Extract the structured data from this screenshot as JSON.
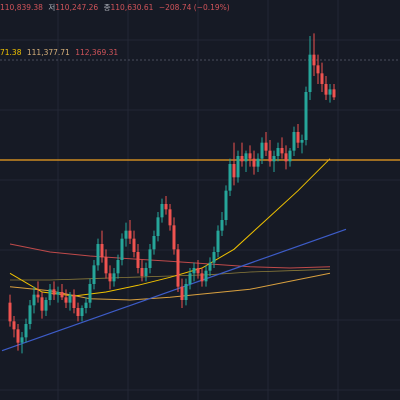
{
  "ohlc_legend": {
    "open": "110,839.38",
    "low_label": "저",
    "low": "110,247.26",
    "close_label": "종",
    "close": "110,630.61",
    "change": "−208.74 (−0.19%)"
  },
  "ma_legend": {
    "ma_a": "71.38",
    "ma_b": "111,377.71",
    "ma_c": "112,369.31"
  },
  "colors": {
    "background": "#161a25",
    "grid": "#232735",
    "up": "#26a69a",
    "down": "#ef5350",
    "ma_short": "#f0c200",
    "ma_mid": "#d9a03f",
    "ma_long": "#c04a4a",
    "support_level": "#f0a020",
    "trendline": "#3d5cc8",
    "ma_faint": "#8a7a3a",
    "price_line": "#5d6270"
  },
  "chart_data": {
    "type": "candlestick",
    "y_range": [
      104150,
      119150
    ],
    "candles": [
      [
        107800,
        108100,
        106900,
        107100
      ],
      [
        107100,
        107300,
        106500,
        106800
      ],
      [
        106800,
        107000,
        106000,
        106300
      ],
      [
        106300,
        106700,
        105900,
        106500
      ],
      [
        106500,
        107200,
        106300,
        107000
      ],
      [
        107000,
        107900,
        106800,
        107700
      ],
      [
        107700,
        108400,
        107400,
        108100
      ],
      [
        108100,
        108600,
        107800,
        108000
      ],
      [
        108000,
        108200,
        107200,
        107500
      ],
      [
        107500,
        108000,
        107300,
        107900
      ],
      [
        107900,
        108500,
        107700,
        108300
      ],
      [
        108300,
        108600,
        107900,
        108100
      ],
      [
        108100,
        108400,
        107800,
        108200
      ],
      [
        108200,
        108500,
        107900,
        108000
      ],
      [
        108000,
        108300,
        107600,
        107800
      ],
      [
        107800,
        108200,
        107500,
        108100
      ],
      [
        108100,
        108300,
        107400,
        107600
      ],
      [
        107600,
        107800,
        107100,
        107300
      ],
      [
        107300,
        107700,
        107100,
        107600
      ],
      [
        107600,
        108000,
        107400,
        107800
      ],
      [
        107800,
        108700,
        107600,
        108500
      ],
      [
        108500,
        109400,
        108300,
        109200
      ],
      [
        109200,
        110200,
        109000,
        110000
      ],
      [
        110000,
        110500,
        109300,
        109500
      ],
      [
        109500,
        109800,
        108700,
        108900
      ],
      [
        108900,
        109200,
        108300,
        108600
      ],
      [
        108600,
        109100,
        108400,
        108900
      ],
      [
        108900,
        109600,
        108700,
        109400
      ],
      [
        109400,
        110400,
        109200,
        110200
      ],
      [
        110200,
        110800,
        109900,
        110500
      ],
      [
        110500,
        110900,
        110000,
        110200
      ],
      [
        110200,
        110500,
        109500,
        109700
      ],
      [
        109700,
        110000,
        108900,
        109100
      ],
      [
        109100,
        109400,
        108600,
        108800
      ],
      [
        108800,
        109300,
        108600,
        109100
      ],
      [
        109100,
        110000,
        108900,
        109800
      ],
      [
        109800,
        110500,
        109600,
        110300
      ],
      [
        110300,
        111200,
        110100,
        111000
      ],
      [
        111000,
        111700,
        110800,
        111500
      ],
      [
        111500,
        111800,
        111100,
        111300
      ],
      [
        111300,
        111500,
        110500,
        110700
      ],
      [
        110700,
        111000,
        109600,
        109800
      ],
      [
        109800,
        110000,
        108200,
        108400
      ],
      [
        108400,
        108700,
        107600,
        107900
      ],
      [
        107900,
        108700,
        107700,
        108500
      ],
      [
        108500,
        109100,
        108300,
        108900
      ],
      [
        108900,
        109300,
        108600,
        109100
      ],
      [
        109100,
        109400,
        108700,
        108900
      ],
      [
        108900,
        109100,
        108400,
        108600
      ],
      [
        108600,
        109200,
        108400,
        109000
      ],
      [
        109000,
        109500,
        108800,
        109300
      ],
      [
        109300,
        109900,
        109100,
        109700
      ],
      [
        109700,
        110700,
        109500,
        110500
      ],
      [
        110500,
        111200,
        110300,
        110900
      ],
      [
        110900,
        112200,
        110700,
        112000
      ],
      [
        112000,
        113200,
        111800,
        113000
      ],
      [
        113000,
        113800,
        112200,
        112500
      ],
      [
        112500,
        113500,
        112300,
        113300
      ],
      [
        113300,
        113800,
        112900,
        113100
      ],
      [
        113100,
        113500,
        112700,
        113400
      ],
      [
        113400,
        113700,
        112900,
        113200
      ],
      [
        113200,
        113500,
        112600,
        112900
      ],
      [
        112900,
        113400,
        112700,
        113200
      ],
      [
        113200,
        114000,
        113000,
        113800
      ],
      [
        113800,
        114200,
        113300,
        113500
      ],
      [
        113500,
        113900,
        112900,
        113100
      ],
      [
        113100,
        113500,
        112700,
        113300
      ],
      [
        113300,
        113800,
        113100,
        113600
      ],
      [
        113600,
        114000,
        113200,
        113400
      ],
      [
        113400,
        113700,
        112800,
        113100
      ],
      [
        113100,
        113600,
        112900,
        113500
      ],
      [
        113500,
        114400,
        113300,
        114200
      ],
      [
        114200,
        114500,
        113600,
        113800
      ],
      [
        113800,
        114100,
        113400,
        113900
      ],
      [
        113900,
        115900,
        113700,
        115700
      ],
      [
        115700,
        117800,
        115400,
        117100
      ],
      [
        117100,
        117900,
        116300,
        116700
      ],
      [
        116700,
        117100,
        116000,
        116400
      ],
      [
        116400,
        116800,
        115700,
        116000
      ],
      [
        116000,
        116300,
        115400,
        115600
      ],
      [
        115600,
        116000,
        115300,
        115800
      ],
      [
        115800,
        116000,
        115400,
        115500
      ]
    ],
    "levels": [
      {
        "name": "horizontal-level",
        "value": 113150
      }
    ],
    "ma_lines": {
      "ma_short": [
        [
          0,
          108900
        ],
        [
          8,
          108200
        ],
        [
          16,
          108050
        ],
        [
          24,
          108200
        ],
        [
          32,
          108450
        ],
        [
          40,
          108750
        ],
        [
          48,
          109100
        ],
        [
          56,
          109800
        ],
        [
          64,
          110900
        ],
        [
          72,
          112000
        ],
        [
          80,
          113200
        ]
      ],
      "ma_mid": [
        [
          0,
          108400
        ],
        [
          10,
          108250
        ],
        [
          20,
          107950
        ],
        [
          30,
          107900
        ],
        [
          40,
          108000
        ],
        [
          50,
          108150
        ],
        [
          60,
          108300
        ],
        [
          70,
          108600
        ],
        [
          80,
          108900
        ]
      ],
      "ma_long": [
        [
          0,
          110000
        ],
        [
          10,
          109700
        ],
        [
          20,
          109550
        ],
        [
          30,
          109450
        ],
        [
          40,
          109350
        ],
        [
          50,
          109250
        ],
        [
          60,
          109150
        ],
        [
          70,
          109100
        ],
        [
          80,
          109150
        ]
      ],
      "ma_faint": [
        [
          0,
          108650
        ],
        [
          10,
          108650
        ],
        [
          20,
          108700
        ],
        [
          30,
          108750
        ],
        [
          40,
          108800
        ],
        [
          50,
          108850
        ],
        [
          60,
          108950
        ],
        [
          70,
          109000
        ],
        [
          80,
          109050
        ]
      ]
    },
    "trendline": [
      [
        -2,
        106000
      ],
      [
        84,
        110550
      ]
    ],
    "price_line": 116900
  }
}
